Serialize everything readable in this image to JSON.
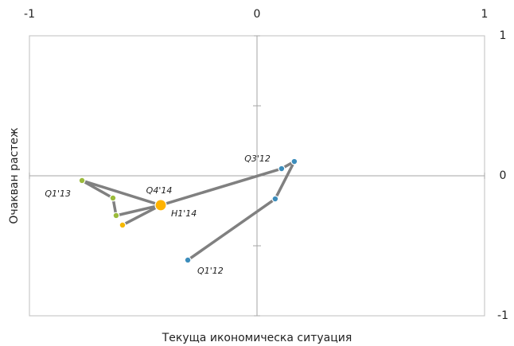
{
  "chart_data": {
    "type": "scatter",
    "x_label": "Текуща икономическа ситуация",
    "y_label": "Очакван растеж",
    "xlim": [
      -1,
      1
    ],
    "xticks": [
      -1,
      0,
      1
    ],
    "ylim": [
      -1,
      1
    ],
    "yticks": [
      -1,
      0,
      1
    ],
    "minor_yticks": [
      -0.5,
      0.5
    ],
    "line_color": "#808080",
    "x": [
      -0.304,
      0.08,
      0.164,
      0.108,
      -0.423,
      -0.769,
      -0.633,
      -0.619,
      -0.423,
      -0.591,
      -0.423
    ],
    "y": [
      -0.602,
      -0.165,
      0.102,
      0.051,
      -0.21,
      -0.034,
      -0.159,
      -0.284,
      -0.21,
      -0.352,
      -0.21
    ],
    "colors": [
      "#3c8dbc",
      "#3c8dbc",
      "#3c8dbc",
      "#3c8dbc",
      "#9bbb3b",
      "#9bbb3b",
      "#9bbb3b",
      "#9bbb3b",
      "#f5b800",
      "#f5b800",
      "#ffb300"
    ],
    "point_labels": [
      "Q1'12",
      null,
      null,
      "Q3'12",
      null,
      "Q1'13",
      null,
      null,
      "Q4'14",
      null,
      "H1'14"
    ]
  }
}
